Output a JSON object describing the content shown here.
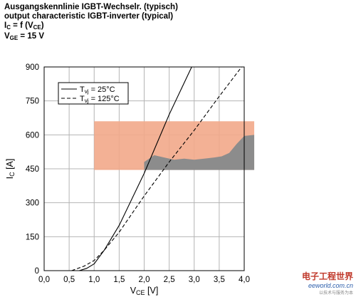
{
  "header": {
    "line1": "Ausgangskennlinie IGBT-Wechselr. (typisch)",
    "line2": "output characteristic IGBT-inverter (typical)",
    "line3_main": "I",
    "line3_sub": "C",
    "line3_mid": " = f (V",
    "line3_sub2": "CE",
    "line3_end": ")",
    "line4_main": "V",
    "line4_sub": "GE",
    "line4_end": " = 15 V"
  },
  "watermark": {
    "cn": "电子工程世界",
    "en": "eeworld.com.cn",
    "slogan": "以技术与服务为本"
  },
  "colors": {
    "grid": "#b4b4b4",
    "orange_band": "#f2a98a",
    "gray_area": "#8c8c8c",
    "curve": "#000000"
  },
  "chart_data": {
    "type": "line",
    "xlabel_main": "V",
    "xlabel_sub": "CE",
    "xlabel_unit": " [V]",
    "ylabel_main": "I",
    "ylabel_sub": "C",
    "ylabel_unit": " [A]",
    "xlim": [
      0,
      4.0
    ],
    "ylim": [
      0,
      900
    ],
    "xticks": [
      "0,0",
      "0,5",
      "1,0",
      "1,5",
      "2,0",
      "2,5",
      "3,0",
      "3,5",
      "4,0"
    ],
    "xtick_values": [
      0,
      0.5,
      1.0,
      1.5,
      2.0,
      2.5,
      3.0,
      3.5,
      4.0
    ],
    "yticks": [
      "0",
      "150",
      "300",
      "450",
      "600",
      "750",
      "900"
    ],
    "ytick_values": [
      0,
      150,
      300,
      450,
      600,
      750,
      900
    ],
    "grid": true,
    "legend_position": "top-left",
    "series": [
      {
        "name_main": "T",
        "name_sub": "vj",
        "name_end": " = 25°C",
        "style": "solid",
        "x": [
          0.7,
          0.85,
          1.0,
          1.2,
          1.5,
          2.0,
          2.5,
          2.95
        ],
        "y": [
          0,
          10,
          30,
          90,
          200,
          430,
          690,
          900
        ]
      },
      {
        "name_main": "T",
        "name_sub": "vj",
        "name_end": " = 125°C",
        "style": "dashed",
        "x": [
          0.55,
          0.8,
          1.0,
          1.2,
          1.5,
          2.0,
          2.5,
          3.0,
          3.5,
          4.0
        ],
        "y": [
          0,
          20,
          45,
          90,
          170,
          330,
          480,
          620,
          770,
          915
        ]
      }
    ],
    "overlays": {
      "orange_band": {
        "x": [
          1.0,
          4.2
        ],
        "y": [
          445,
          660
        ]
      },
      "gray_area": {
        "x": [
          2.0,
          2.2,
          2.4,
          2.6,
          2.8,
          3.0,
          3.2,
          3.4,
          3.55,
          3.7,
          3.85,
          4.0,
          4.2
        ],
        "y": [
          480,
          510,
          500,
          490,
          495,
          490,
          495,
          500,
          505,
          520,
          560,
          595,
          600
        ]
      }
    }
  }
}
